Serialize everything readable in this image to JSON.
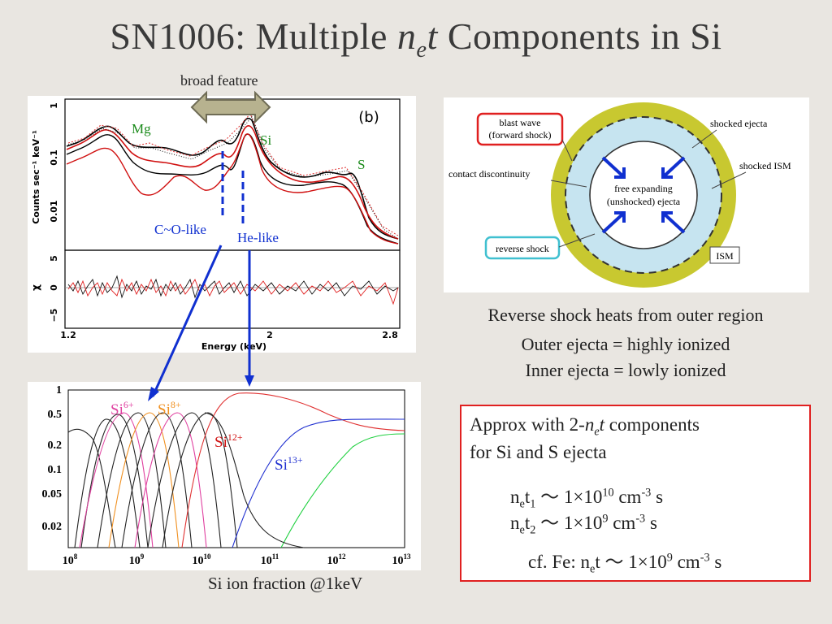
{
  "title": {
    "prefix": "SN1006: Multiple ",
    "ne_n": "n",
    "ne_e": "e",
    "ne_t": "t",
    "suffix": " Components in Si"
  },
  "spectrum": {
    "broad_label": "broad feature",
    "panel_tag": "(b)",
    "y_axis_label": "Counts sec⁻¹ keV⁻¹",
    "y_ticks": [
      "1",
      "0.1",
      "0.01"
    ],
    "resid_label": "χ",
    "resid_ticks": [
      "5",
      "0",
      "−5"
    ],
    "x_ticks": [
      "1.2",
      "2",
      "2.8"
    ],
    "x_axis_label": "Energy (keV)",
    "lines": {
      "mg": "Mg",
      "si": "Si",
      "s": "S"
    },
    "co_like": "C~O-like",
    "he_like": "He-like"
  },
  "schematic": {
    "blast_wave_1": "blast wave",
    "blast_wave_2": "(forward shock)",
    "shocked_ejecta": "shocked ejecta",
    "contact": "contact discontinuity",
    "shocked_ism": "shocked ISM",
    "free_1": "free expanding",
    "free_2": "(unshocked) ejecta",
    "reverse_shock": "reverse shock",
    "ism": "ISM"
  },
  "captions": {
    "reverse": "Reverse shock heats from outer region",
    "outer": "Outer ejecta = highly ionized",
    "inner": "Inner ejecta = lowly ionized"
  },
  "ion_plot": {
    "y_ticks": [
      "1",
      "0.5",
      "0.2",
      "0.1",
      "0.05",
      "0.02"
    ],
    "x_base": "10",
    "x_exps": [
      "8",
      "9",
      "10",
      "11",
      "12",
      "13"
    ],
    "labels": {
      "si6_base": "Si",
      "si6_sup": "6+",
      "si8_base": "Si",
      "si8_sup": "8+",
      "si12_base": "Si",
      "si12_sup": "12+",
      "si13_base": "Si",
      "si13_sup": "13+"
    },
    "caption": "Si ion fraction  @1keV"
  },
  "box": {
    "line1_a": "Approx with 2-",
    "line1_n": "n",
    "line1_e": "e",
    "line1_t": "t",
    "line1_b": " components",
    "line2": "for Si and S ejecta",
    "eq1": {
      "n": "n",
      "e": "e",
      "t": "t",
      "idx": "1",
      "rel": " ～ 1×10",
      "exp": "10",
      "unit": " cm",
      "uexp": "-3",
      "s": " s"
    },
    "eq2": {
      "n": "n",
      "e": "e",
      "t": "t",
      "idx": "2",
      "rel": " ～ 1×10",
      "exp": "9",
      "unit": " cm",
      "uexp": "-3",
      "s": " s"
    },
    "eq3": {
      "pre": "cf. Fe: n",
      "e": "e",
      "t": "t",
      "rel": " ～ 1×10",
      "exp": "9",
      "unit": " cm",
      "uexp": "-3",
      "s": " s"
    }
  },
  "colors": {
    "box_border": "#e02020",
    "arrow_blue": "#1030d0",
    "ring_yellow": "#c8c830",
    "ring_blue": "#c6e4f0"
  }
}
